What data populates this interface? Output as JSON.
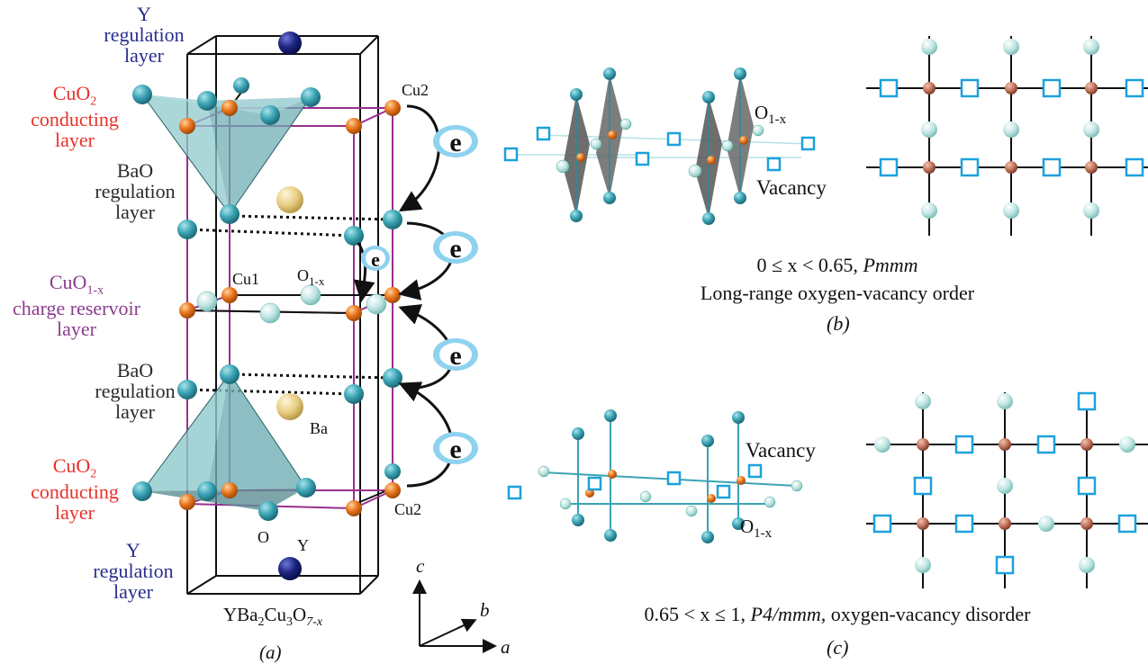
{
  "layers": {
    "y_top": [
      "Y",
      "regulation",
      "layer"
    ],
    "cuo2_top": [
      "CuO",
      "2",
      "conducting",
      "layer"
    ],
    "bao_top": [
      "BaO",
      "regulation",
      "layer"
    ],
    "reservoir": [
      "CuO",
      "1-x",
      "charge reservoir",
      "layer"
    ],
    "bao_bottom": [
      "BaO",
      "regulation",
      "layer"
    ],
    "cuo2_bottom": [
      "CuO",
      "2",
      "conducting",
      "layer"
    ],
    "y_bottom": [
      "Y",
      "regulation",
      "layer"
    ]
  },
  "atoms": {
    "cu2": "Cu2",
    "cu1": "Cu1",
    "o_sym": "O",
    "o_sub": "1-x",
    "ba": "Ba",
    "o": "O",
    "y": "Y"
  },
  "formula": {
    "p1": "YBa",
    "s1": "2",
    "p2": "Cu",
    "s2": "3",
    "p3": "O",
    "s3": "7-x"
  },
  "electron": "e",
  "axes": {
    "c": "c",
    "b": "b",
    "a": "a"
  },
  "panels": {
    "a": "(a)",
    "b": {
      "label": "(b)",
      "vacancy": "Vacancy",
      "o_label_sym": "O",
      "o_label_sub": "1-x",
      "range": "0 ≤ x < 0.65, ",
      "group": "Pmmm",
      "caption2": "Long-range oxygen-vacancy order"
    },
    "c": {
      "label": "(c)",
      "vacancy": "Vacancy",
      "o_label_sym": "O",
      "o_label_sub": "1-x",
      "range": "0.65 < x ≤ 1, ",
      "group": "P4/mmm",
      "tail": ", oxygen-vacancy disorder"
    }
  },
  "colors": {
    "frame": "#111111",
    "cell_edge": "#9a2f8f",
    "o_atom": "#3aa3b3",
    "o_light": "#bfe5e2",
    "cu_atom": "#e8731a",
    "cu_grid": "#c0715a",
    "ba_atom": "#e7cd82",
    "y_atom": "#1c2580",
    "vacancy": "#1da1dc",
    "pyramid": "#8fc9cc",
    "octa": "#666666",
    "electron_ring": "#8fd2f0"
  }
}
